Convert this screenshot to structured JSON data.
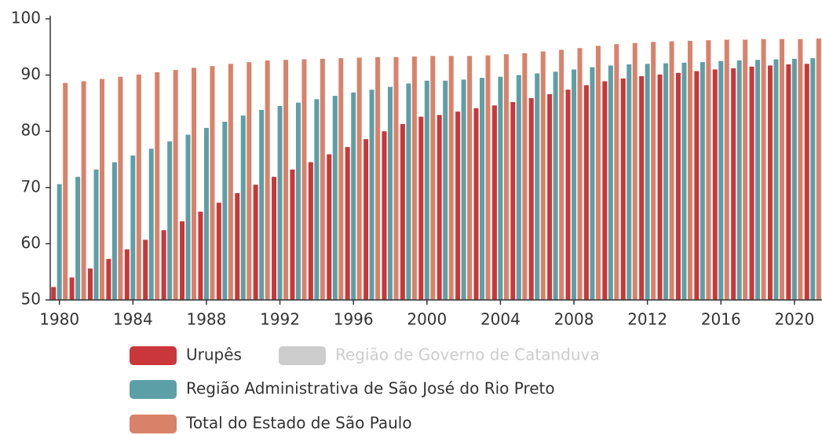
{
  "chart_data": {
    "type": "bar",
    "x": [
      1980,
      1981,
      1982,
      1983,
      1984,
      1985,
      1986,
      1987,
      1988,
      1989,
      1990,
      1991,
      1992,
      1993,
      1994,
      1995,
      1996,
      1997,
      1998,
      1999,
      2000,
      2001,
      2002,
      2003,
      2004,
      2005,
      2006,
      2007,
      2008,
      2009,
      2010,
      2011,
      2012,
      2013,
      2014,
      2015,
      2016,
      2017,
      2018,
      2019,
      2020,
      2021
    ],
    "xlim": [
      1979.5,
      2021.5
    ],
    "xticks": [
      1980,
      1984,
      1988,
      1992,
      1996,
      2000,
      2004,
      2008,
      2012,
      2016,
      2020
    ],
    "ylim": [
      50,
      100
    ],
    "yticks": [
      50,
      60,
      70,
      80,
      90,
      100
    ],
    "series": [
      {
        "name": "Urupês",
        "color": "#c9373a",
        "values": [
          52.3,
          54.0,
          55.6,
          57.3,
          59.0,
          60.7,
          62.4,
          64.0,
          65.7,
          67.3,
          69.0,
          70.5,
          71.9,
          73.2,
          74.5,
          75.9,
          77.2,
          78.6,
          80.0,
          81.3,
          82.6,
          82.9,
          83.5,
          84.1,
          84.6,
          85.2,
          85.9,
          86.6,
          87.4,
          88.2,
          88.9,
          89.4,
          89.8,
          90.1,
          90.4,
          90.7,
          91.0,
          91.2,
          91.5,
          91.7,
          91.9,
          92.0
        ]
      },
      {
        "name": "Região de Governo de Catanduva",
        "color": "#cccccc",
        "visible": false
      },
      {
        "name": "Região Administrativa de São José do Rio Preto",
        "color": "#5d9fa6",
        "values": [
          70.6,
          71.9,
          73.2,
          74.5,
          75.7,
          76.9,
          78.2,
          79.4,
          80.6,
          81.7,
          82.8,
          83.8,
          84.5,
          85.1,
          85.7,
          86.3,
          86.9,
          87.4,
          87.9,
          88.5,
          89.0,
          89.0,
          89.2,
          89.5,
          89.7,
          90.0,
          90.3,
          90.6,
          91.0,
          91.4,
          91.7,
          91.9,
          92.0,
          92.1,
          92.2,
          92.3,
          92.5,
          92.6,
          92.7,
          92.8,
          92.9,
          93.0
        ]
      },
      {
        "name": "Total do Estado de São Paulo",
        "color": "#d9826a",
        "values": [
          88.6,
          88.9,
          89.3,
          89.7,
          90.1,
          90.5,
          90.9,
          91.3,
          91.6,
          92.0,
          92.3,
          92.6,
          92.7,
          92.8,
          92.9,
          93.0,
          93.1,
          93.2,
          93.2,
          93.3,
          93.4,
          93.4,
          93.4,
          93.5,
          93.7,
          93.9,
          94.2,
          94.5,
          94.8,
          95.2,
          95.5,
          95.7,
          95.9,
          96.0,
          96.1,
          96.2,
          96.3,
          96.3,
          96.4,
          96.4,
          96.4,
          96.5
        ]
      }
    ]
  }
}
